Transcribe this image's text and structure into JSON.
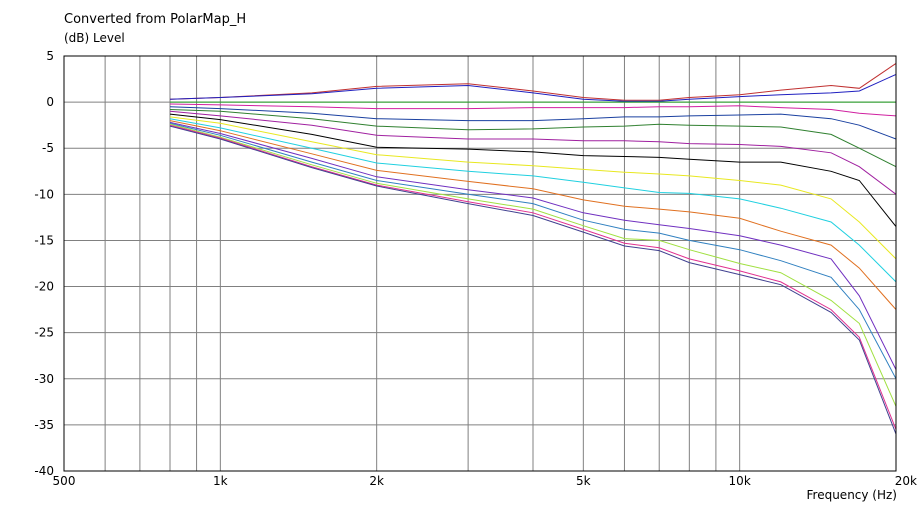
{
  "chart_data": {
    "type": "line",
    "title": "Converted from PolarMap_H",
    "ylabel": "(dB)  Level",
    "xlabel": "Frequency  (Hz)",
    "x_scale": "log",
    "xlim": [
      500,
      20000
    ],
    "ylim": [
      -40,
      5
    ],
    "grid": true,
    "x_ticks": [
      {
        "value": 500,
        "label": "500"
      },
      {
        "value": 1000,
        "label": "1k"
      },
      {
        "value": 2000,
        "label": "2k"
      },
      {
        "value": 5000,
        "label": "5k"
      },
      {
        "value": 10000,
        "label": "10k"
      },
      {
        "value": 20000,
        "label": "20k"
      }
    ],
    "y_ticks": [
      {
        "value": 5,
        "label": "5"
      },
      {
        "value": 0,
        "label": "0"
      },
      {
        "value": -5,
        "label": "-5"
      },
      {
        "value": -10,
        "label": "-10"
      },
      {
        "value": -15,
        "label": "-15"
      },
      {
        "value": -20,
        "label": "-20"
      },
      {
        "value": -25,
        "label": "-25"
      },
      {
        "value": -30,
        "label": "-30"
      },
      {
        "value": -35,
        "label": "-35"
      },
      {
        "value": -40,
        "label": "-40"
      }
    ],
    "x": [
      800,
      1000,
      1500,
      2000,
      3000,
      4000,
      5000,
      6000,
      7000,
      8000,
      10000,
      12000,
      15000,
      17000,
      20000
    ],
    "series": [
      {
        "color": "#c03030",
        "values": [
          0.3,
          0.5,
          1.0,
          1.7,
          2.0,
          1.2,
          0.5,
          0.2,
          0.2,
          0.5,
          0.8,
          1.3,
          1.8,
          1.5,
          4.2
        ]
      },
      {
        "color": "#2020c0",
        "values": [
          0.3,
          0.5,
          0.9,
          1.5,
          1.8,
          1.0,
          0.3,
          0.1,
          0.1,
          0.3,
          0.6,
          0.8,
          1.0,
          1.2,
          3.0
        ]
      },
      {
        "color": "#20a020",
        "values": [
          0.0,
          0.0,
          0.0,
          0.0,
          0.0,
          0.0,
          0.0,
          0.0,
          0.0,
          0.0,
          0.0,
          0.0,
          0.0,
          0.0,
          0.0
        ]
      },
      {
        "color": "#d020a0",
        "values": [
          -0.2,
          -0.3,
          -0.5,
          -0.7,
          -0.7,
          -0.6,
          -0.6,
          -0.6,
          -0.5,
          -0.5,
          -0.4,
          -0.6,
          -0.8,
          -1.2,
          -1.5
        ]
      },
      {
        "color": "#1a40a0",
        "values": [
          -0.5,
          -0.7,
          -1.2,
          -1.8,
          -2.0,
          -2.0,
          -1.8,
          -1.6,
          -1.6,
          -1.5,
          -1.4,
          -1.3,
          -1.8,
          -2.5,
          -4.0
        ]
      },
      {
        "color": "#308030",
        "values": [
          -0.8,
          -1.0,
          -1.8,
          -2.6,
          -3.0,
          -2.9,
          -2.7,
          -2.6,
          -2.4,
          -2.5,
          -2.6,
          -2.7,
          -3.5,
          -5.0,
          -7.0
        ]
      },
      {
        "color": "#a020a0",
        "values": [
          -1.0,
          -1.5,
          -2.5,
          -3.6,
          -4.0,
          -4.0,
          -4.2,
          -4.2,
          -4.3,
          -4.5,
          -4.6,
          -4.8,
          -5.5,
          -7.0,
          -10.0
        ]
      },
      {
        "color": "#000000",
        "values": [
          -1.3,
          -1.9,
          -3.5,
          -4.9,
          -5.1,
          -5.4,
          -5.8,
          -5.9,
          -6.0,
          -6.2,
          -6.5,
          -6.5,
          -7.5,
          -8.5,
          -13.5
        ]
      },
      {
        "color": "#e8e820",
        "values": [
          -1.6,
          -2.3,
          -4.3,
          -5.7,
          -6.5,
          -6.9,
          -7.3,
          -7.6,
          -7.8,
          -8.0,
          -8.5,
          -9.0,
          -10.5,
          -13.0,
          -17.0
        ]
      },
      {
        "color": "#20d0e0",
        "values": [
          -1.8,
          -2.8,
          -5.0,
          -6.6,
          -7.5,
          -8.0,
          -8.7,
          -9.3,
          -9.8,
          -9.9,
          -10.5,
          -11.5,
          -13.0,
          -15.5,
          -19.5
        ]
      },
      {
        "color": "#e07020",
        "values": [
          -2.0,
          -3.1,
          -5.6,
          -7.4,
          -8.6,
          -9.4,
          -10.6,
          -11.3,
          -11.6,
          -11.9,
          -12.6,
          -14.0,
          -15.5,
          -18.0,
          -22.5
        ]
      },
      {
        "color": "#7030c0",
        "values": [
          -2.2,
          -3.4,
          -6.1,
          -8.1,
          -9.5,
          -10.4,
          -12.0,
          -12.8,
          -13.3,
          -13.7,
          -14.5,
          -15.5,
          -17.0,
          -21.0,
          -29.0
        ]
      },
      {
        "color": "#3080c0",
        "values": [
          -2.3,
          -3.6,
          -6.5,
          -8.5,
          -10.0,
          -11.0,
          -12.8,
          -13.8,
          -14.2,
          -15.0,
          -16.0,
          -17.2,
          -19.0,
          -22.5,
          -30.0
        ]
      },
      {
        "color": "#a0e040",
        "values": [
          -2.4,
          -3.8,
          -6.8,
          -8.8,
          -10.5,
          -11.6,
          -13.4,
          -14.8,
          -15.0,
          -16.0,
          -17.5,
          -18.5,
          -21.5,
          -24.0,
          -33.0
        ]
      },
      {
        "color": "#e03090",
        "values": [
          -2.5,
          -3.9,
          -7.0,
          -9.0,
          -10.8,
          -12.0,
          -13.8,
          -15.3,
          -15.8,
          -17.0,
          -18.3,
          -19.5,
          -22.5,
          -25.5,
          -35.5
        ]
      },
      {
        "color": "#404090",
        "values": [
          -2.6,
          -4.0,
          -7.1,
          -9.1,
          -11.0,
          -12.3,
          -14.1,
          -15.6,
          -16.1,
          -17.4,
          -18.7,
          -19.8,
          -22.8,
          -25.8,
          -36.0
        ]
      }
    ]
  }
}
